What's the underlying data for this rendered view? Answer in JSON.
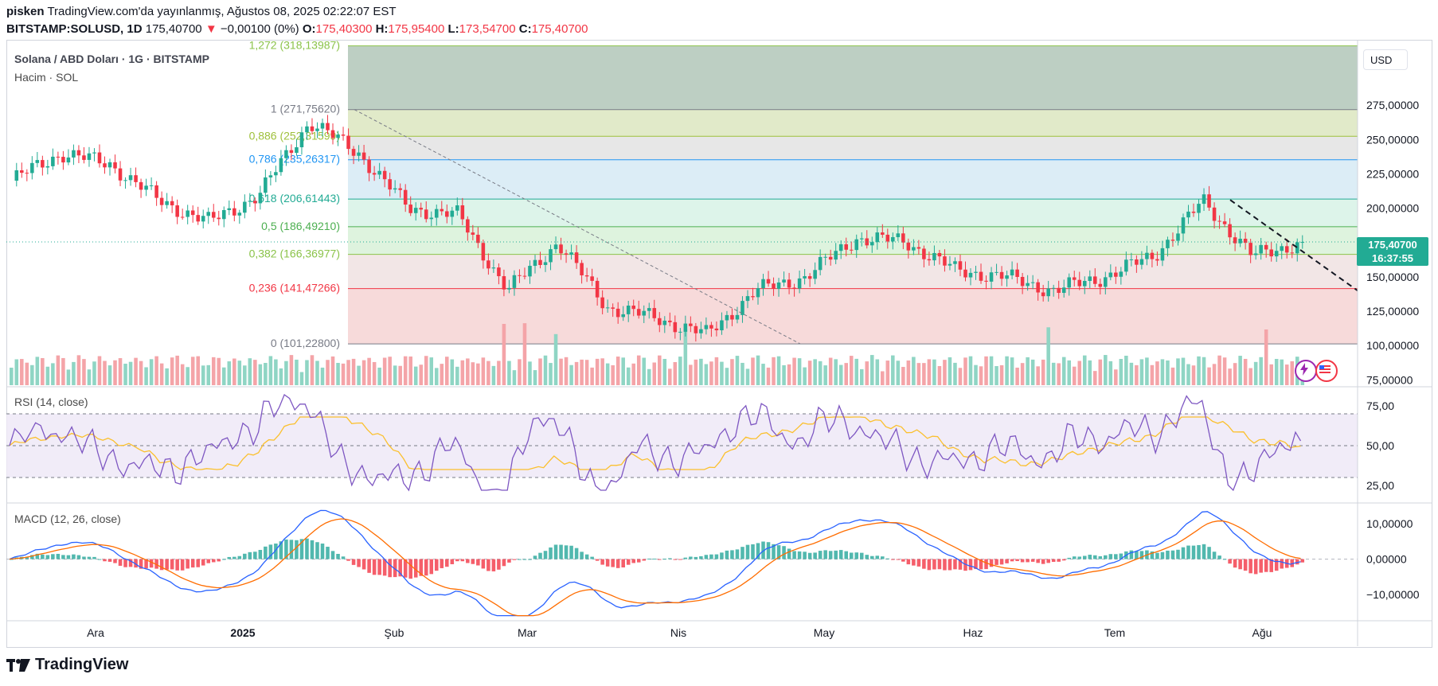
{
  "header": {
    "author": "pisken",
    "published": "TradingView.com'da yayınlanmış, Ağustos 08, 2025 02:22:07 EST",
    "symbol": "BITSTAMP:SOLUSD, 1D",
    "last": "175,40700",
    "change_arrow": "▼",
    "change": "−0,00100 (0%)",
    "o_label": "O:",
    "o": "175,40300",
    "h_label": "H:",
    "h": "175,95400",
    "l_label": "L:",
    "l": "173,54700",
    "c_label": "C:",
    "c": "175,40700"
  },
  "legend": {
    "title": "Solana / ABD Doları · 1G · BITSTAMP",
    "volume": "Hacim · SOL",
    "rsi": "RSI (14, close)",
    "macd": "MACD (12, 26, close)"
  },
  "price_axis": {
    "currency": "USD",
    "ticks": [
      "275,00000",
      "250,00000",
      "225,00000",
      "200,00000",
      "150,00000",
      "125,00000",
      "100,00000",
      "75,00000"
    ],
    "last_price": "175,40700",
    "countdown": "16:37:55"
  },
  "rsi_axis": {
    "ticks": [
      "75,00",
      "50,00",
      "25,00"
    ]
  },
  "macd_axis": {
    "ticks": [
      "10,00000",
      "0,00000",
      "−10,00000"
    ]
  },
  "time_axis": [
    "Ara",
    "2025",
    "Şub",
    "Mar",
    "Nis",
    "May",
    "Haz",
    "Tem",
    "Ağu"
  ],
  "footer": {
    "brand": "TradingView"
  },
  "colors": {
    "up": "#22ab94",
    "down": "#f23645",
    "rsi": "#7e57c2",
    "rsi_ma": "#fbc02d",
    "macd": "#2962ff",
    "signal": "#ff6d00"
  },
  "chart_data": {
    "type": "candlestick",
    "title": "Solana / ABD Doları · 1G · BITSTAMP",
    "y_unit": "USD",
    "ylim": [
      70,
      322
    ],
    "fibonacci": [
      {
        "level": "1,272",
        "price": "318,13987",
        "value": 318.14,
        "color": "#8bc34a"
      },
      {
        "level": "1",
        "price": "271,75620",
        "value": 271.76,
        "color": "#787b86"
      },
      {
        "level": "0,886",
        "price": "252,31599",
        "value": 252.32,
        "color": "#9ec03a"
      },
      {
        "level": "0,786",
        "price": "235,26317",
        "value": 235.26,
        "color": "#2196f3"
      },
      {
        "level": "0,618",
        "price": "206,61443",
        "value": 206.61,
        "color": "#22ab94"
      },
      {
        "level": "0,5",
        "price": "186,49210",
        "value": 186.49,
        "color": "#4caf50"
      },
      {
        "level": "0,382",
        "price": "166,36977",
        "value": 166.37,
        "color": "#8bc34a"
      },
      {
        "level": "0,236",
        "price": "141,47266",
        "value": 141.47,
        "color": "#f23645"
      },
      {
        "level": "0",
        "price": "101,22800",
        "value": 101.23,
        "color": "#787b86"
      }
    ],
    "price_path": [
      {
        "month": "Ara",
        "value": 220
      },
      {
        "month": "Ara",
        "value": 240
      },
      {
        "month": "Ara",
        "value": 232
      },
      {
        "month": "Ara",
        "value": 205
      },
      {
        "month": "2025",
        "value": 190
      },
      {
        "month": "2025",
        "value": 210
      },
      {
        "month": "2025",
        "value": 263
      },
      {
        "month": "Şub",
        "value": 240
      },
      {
        "month": "Şub",
        "value": 200
      },
      {
        "month": "Şub",
        "value": 195
      },
      {
        "month": "Mar",
        "value": 140
      },
      {
        "month": "Mar",
        "value": 175
      },
      {
        "month": "Mar",
        "value": 128
      },
      {
        "month": "Nis",
        "value": 120
      },
      {
        "month": "Nis",
        "value": 108
      },
      {
        "month": "Nis",
        "value": 140
      },
      {
        "month": "May",
        "value": 150
      },
      {
        "month": "May",
        "value": 178
      },
      {
        "month": "May",
        "value": 176
      },
      {
        "month": "Haz",
        "value": 155
      },
      {
        "month": "Haz",
        "value": 150
      },
      {
        "month": "Haz",
        "value": 140
      },
      {
        "month": "Tem",
        "value": 150
      },
      {
        "month": "Tem",
        "value": 165
      },
      {
        "month": "Tem",
        "value": 205
      },
      {
        "month": "Ağu",
        "value": 165
      },
      {
        "month": "Ağu",
        "value": 175.4
      }
    ],
    "rsi": {
      "upper": 70,
      "mid": 50,
      "lower": 30,
      "last": 53
    },
    "macd": {
      "last_macd": 1.5,
      "last_signal": 1.8
    }
  }
}
